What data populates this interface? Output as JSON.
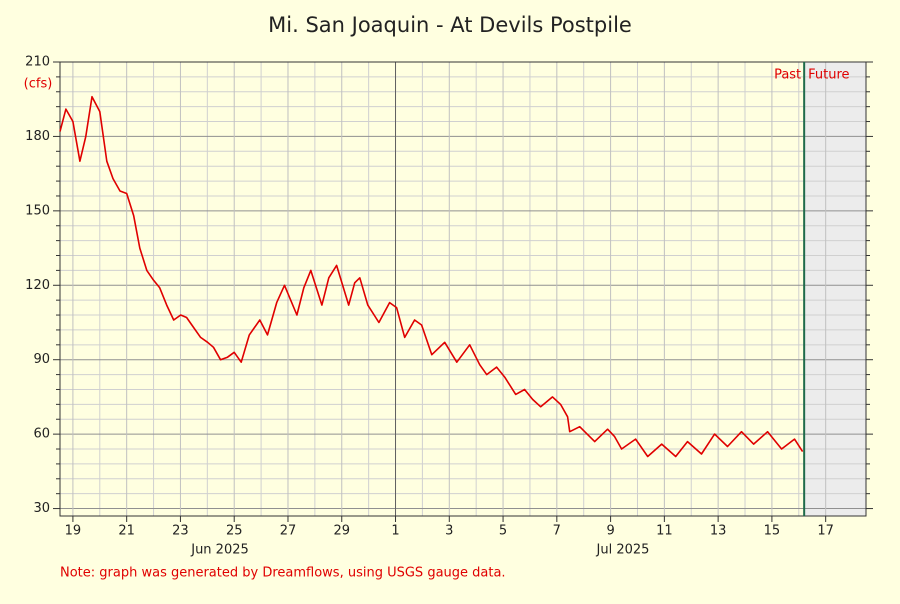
{
  "chart_data": {
    "type": "line",
    "title": "Mi. San Joaquin - At Devils Postpile",
    "y_unit": "(cfs)",
    "note": "Note: graph was generated by Dreamflows, using USGS gauge data.",
    "months": [
      "Jun 2025",
      "Jul 2025"
    ],
    "past_label": "Past",
    "future_label": "Future",
    "now_x": 46.2,
    "color": "#e00000",
    "grid": true,
    "xlim": [
      18.52,
      48.5
    ],
    "ylim": [
      27,
      210
    ],
    "yticks": [
      30,
      60,
      90,
      120,
      150,
      180,
      210
    ],
    "xticks": [
      19,
      21,
      23,
      25,
      27,
      29,
      {
        "value": 31,
        "label": "1"
      },
      {
        "value": 33,
        "label": "3"
      },
      {
        "value": 35,
        "label": "5"
      },
      {
        "value": 37,
        "label": "7"
      },
      {
        "value": 39,
        "label": "9"
      },
      {
        "value": 41,
        "label": "11"
      },
      {
        "value": 43,
        "label": "13"
      },
      {
        "value": 45,
        "label": "15"
      },
      {
        "value": 47,
        "label": "17"
      }
    ],
    "x": [
      18.52,
      18.74,
      19,
      19.26,
      19.48,
      19.71,
      20.0,
      20.26,
      20.49,
      20.75,
      21.0,
      21.26,
      21.49,
      21.75,
      22.0,
      22.23,
      22.49,
      22.75,
      23.01,
      23.23,
      23.49,
      23.75,
      24.01,
      24.23,
      24.49,
      24.75,
      25.0,
      25.26,
      25.56,
      25.95,
      26.24,
      26.58,
      26.87,
      27.33,
      27.59,
      27.85,
      28.26,
      28.52,
      28.81,
      29.26,
      29.48,
      29.67,
      29.97,
      30.38,
      30.78,
      31.04,
      31.34,
      31.71,
      31.97,
      32.35,
      32.83,
      33.28,
      33.76,
      34.13,
      34.39,
      34.76,
      35.06,
      35.47,
      35.8,
      36.1,
      36.4,
      36.84,
      37.14,
      37.4,
      37.48,
      37.85,
      38.41,
      38.89,
      39.15,
      39.41,
      39.93,
      40.38,
      40.9,
      41.42,
      41.86,
      42.38,
      42.87,
      43.35,
      43.87,
      44.32,
      44.84,
      45.36,
      45.84,
      46.14
    ],
    "values": [
      182,
      191,
      186,
      170,
      180,
      196,
      190,
      170,
      163,
      158,
      157,
      148,
      135,
      126,
      122,
      119,
      112,
      106,
      108,
      107,
      103,
      99,
      97,
      95,
      90,
      91,
      93,
      89,
      100,
      106,
      100,
      113,
      120,
      108,
      119,
      126,
      112,
      123,
      128,
      112,
      121,
      123,
      112,
      105,
      113,
      111,
      99,
      106,
      104,
      92,
      97,
      89,
      96,
      88,
      84,
      87,
      83,
      76,
      78,
      74,
      71,
      75,
      72,
      67,
      61,
      63,
      57,
      62,
      59,
      54,
      58,
      51,
      56,
      51,
      57,
      52,
      60,
      55,
      61,
      56,
      61,
      54,
      58,
      53
    ]
  }
}
